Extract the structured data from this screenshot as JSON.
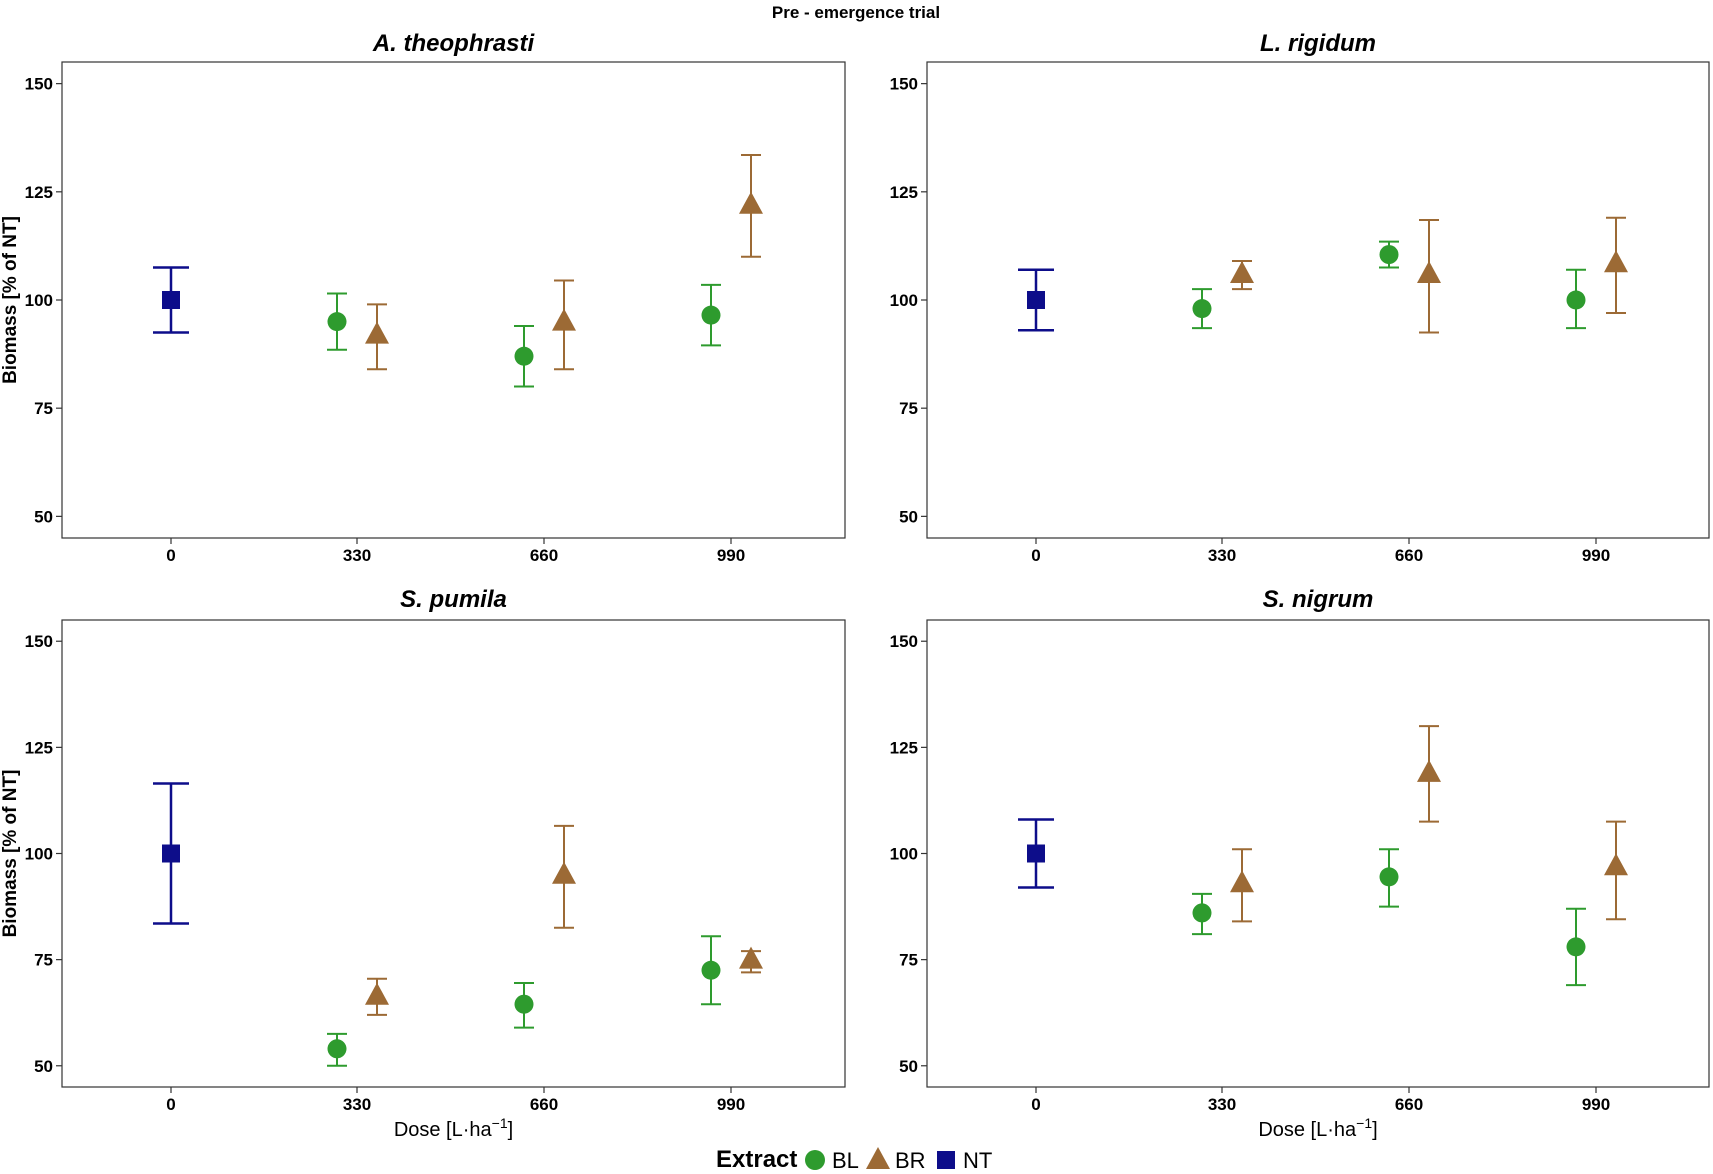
{
  "chart_data": {
    "type": "scatter",
    "suptitle": "Pre - emergence trial",
    "xlabel_prefix": "Dose  [L·ha",
    "xlabel_exp": "−1",
    "xlabel_suffix": "]",
    "ylabel": "Biomass [% of NT]",
    "categories": [
      "0",
      "330",
      "660",
      "990"
    ],
    "yticks": [
      50,
      75,
      100,
      125,
      150
    ],
    "ylim": [
      45,
      155
    ],
    "legend": {
      "title": "Extract",
      "entries": [
        {
          "name": "BL",
          "shape": "circle",
          "color": "#2e9b2e"
        },
        {
          "name": "BR",
          "shape": "triangle",
          "color": "#9c6a35"
        },
        {
          "name": "NT",
          "shape": "square",
          "color": "#0d0d8a"
        }
      ]
    },
    "panels": [
      {
        "title": "A. theophrasti",
        "series": [
          {
            "name": "NT",
            "points": [
              {
                "dose": "0",
                "mean": 100,
                "low": 92.5,
                "high": 107.5
              }
            ]
          },
          {
            "name": "BL",
            "points": [
              {
                "dose": "330",
                "mean": 95,
                "low": 88.5,
                "high": 101.5
              },
              {
                "dose": "660",
                "mean": 87,
                "low": 80,
                "high": 94
              },
              {
                "dose": "990",
                "mean": 96.5,
                "low": 89.5,
                "high": 103.5
              }
            ]
          },
          {
            "name": "BR",
            "points": [
              {
                "dose": "330",
                "mean": 92,
                "low": 84,
                "high": 99
              },
              {
                "dose": "660",
                "mean": 95,
                "low": 84,
                "high": 104.5
              },
              {
                "dose": "990",
                "mean": 122,
                "low": 110,
                "high": 133.5
              }
            ]
          }
        ]
      },
      {
        "title": "L. rigidum",
        "series": [
          {
            "name": "NT",
            "points": [
              {
                "dose": "0",
                "mean": 100,
                "low": 93,
                "high": 107
              }
            ]
          },
          {
            "name": "BL",
            "points": [
              {
                "dose": "330",
                "mean": 98,
                "low": 93.5,
                "high": 102.5
              },
              {
                "dose": "660",
                "mean": 110.5,
                "low": 107.5,
                "high": 113.5
              },
              {
                "dose": "990",
                "mean": 100,
                "low": 93.5,
                "high": 107
              }
            ]
          },
          {
            "name": "BR",
            "points": [
              {
                "dose": "330",
                "mean": 106,
                "low": 102.5,
                "high": 109
              },
              {
                "dose": "660",
                "mean": 106,
                "low": 92.5,
                "high": 118.5
              },
              {
                "dose": "990",
                "mean": 108.5,
                "low": 97,
                "high": 119
              }
            ]
          }
        ]
      },
      {
        "title": "S. pumila",
        "series": [
          {
            "name": "NT",
            "points": [
              {
                "dose": "0",
                "mean": 100,
                "low": 83.5,
                "high": 116.5
              }
            ]
          },
          {
            "name": "BL",
            "points": [
              {
                "dose": "330",
                "mean": 54,
                "low": 50,
                "high": 57.5
              },
              {
                "dose": "660",
                "mean": 64.5,
                "low": 59,
                "high": 69.5
              },
              {
                "dose": "990",
                "mean": 72.5,
                "low": 64.5,
                "high": 80.5
              }
            ]
          },
          {
            "name": "BR",
            "points": [
              {
                "dose": "330",
                "mean": 66.5,
                "low": 62,
                "high": 70.5
              },
              {
                "dose": "660",
                "mean": 95,
                "low": 82.5,
                "high": 106.5
              },
              {
                "dose": "990",
                "mean": 75,
                "low": 72,
                "high": 77
              }
            ]
          }
        ]
      },
      {
        "title": "S. nigrum",
        "series": [
          {
            "name": "NT",
            "points": [
              {
                "dose": "0",
                "mean": 100,
                "low": 92,
                "high": 108
              }
            ]
          },
          {
            "name": "BL",
            "points": [
              {
                "dose": "330",
                "mean": 86,
                "low": 81,
                "high": 90.5
              },
              {
                "dose": "660",
                "mean": 94.5,
                "low": 87.5,
                "high": 101
              },
              {
                "dose": "990",
                "mean": 78,
                "low": 69,
                "high": 87
              }
            ]
          },
          {
            "name": "BR",
            "points": [
              {
                "dose": "330",
                "mean": 93,
                "low": 84,
                "high": 101
              },
              {
                "dose": "660",
                "mean": 119,
                "low": 107.5,
                "high": 130
              },
              {
                "dose": "990",
                "mean": 97,
                "low": 84.5,
                "high": 107.5
              }
            ]
          }
        ]
      }
    ]
  }
}
